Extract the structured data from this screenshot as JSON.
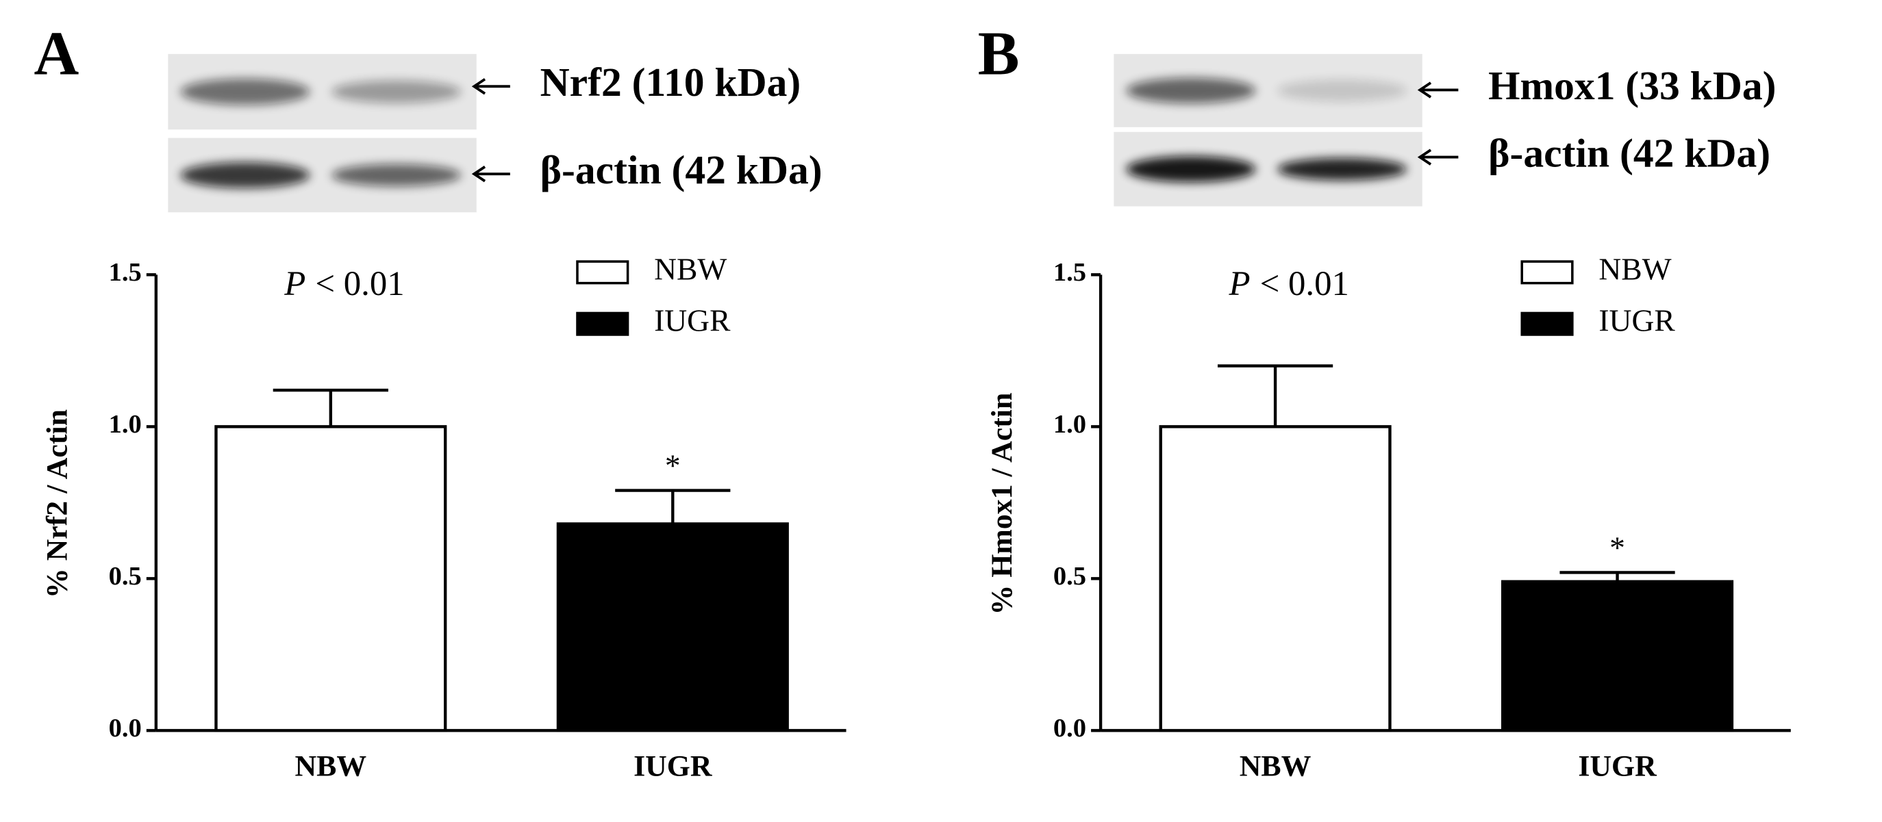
{
  "chart_data": [
    {
      "type": "bar",
      "panel": "A",
      "blot_labels": [
        "Nrf2 (110 kDa)",
        "β-actin (42 kDa)"
      ],
      "y_label": "% Nrf2 / Actin",
      "annotation_italic": "P",
      "annotation_text": "< 0.01",
      "categories": [
        "NBW",
        "IUGR"
      ],
      "values": [
        1.0,
        0.68
      ],
      "errors": [
        0.12,
        0.11
      ],
      "colors": [
        "#ffffff",
        "#000000"
      ],
      "significance": [
        null,
        "*"
      ],
      "ylim": [
        0,
        1.5
      ],
      "yticks": [
        {
          "value": 0,
          "label": "0.0"
        },
        {
          "value": 0.5,
          "label": "0.5"
        },
        {
          "value": 1,
          "label": "1.0"
        },
        {
          "value": 1.5,
          "label": "1.5"
        }
      ]
    },
    {
      "type": "bar",
      "panel": "B",
      "blot_labels": [
        "Hmox1 (33 kDa)",
        "β-actin (42 kDa)"
      ],
      "y_label": "% Hmox1 / Actin",
      "annotation_italic": "P",
      "annotation_text": "< 0.01",
      "categories": [
        "NBW",
        "IUGR"
      ],
      "values": [
        1.0,
        0.49
      ],
      "errors": [
        0.2,
        0.03
      ],
      "colors": [
        "#ffffff",
        "#000000"
      ],
      "significance": [
        null,
        "*"
      ],
      "ylim": [
        0,
        1.5
      ],
      "yticks": [
        {
          "value": 0,
          "label": "0.0"
        },
        {
          "value": 0.5,
          "label": "0.5"
        },
        {
          "value": 1,
          "label": "1.0"
        },
        {
          "value": 1.5,
          "label": "1.5"
        }
      ]
    }
  ]
}
